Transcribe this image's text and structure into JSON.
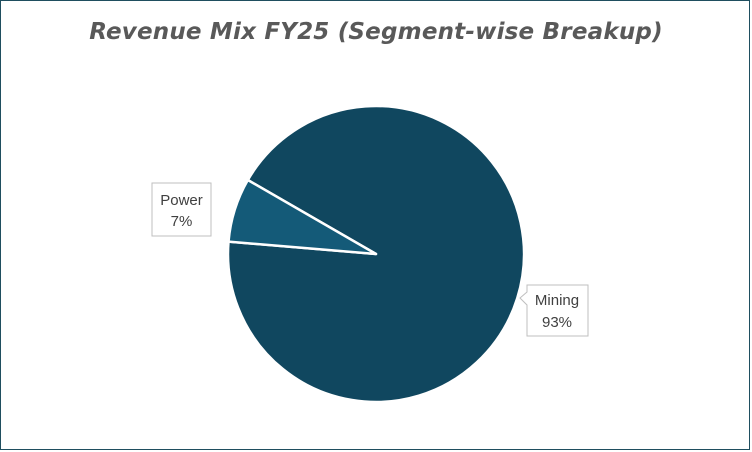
{
  "chart_data": {
    "type": "pie",
    "title": "Revenue Mix FY25 (Segment-wise Breakup)",
    "slices": [
      {
        "label": "Mining",
        "value": 93,
        "value_label": "93%",
        "color": "#10475f"
      },
      {
        "label": "Power",
        "value": 7,
        "value_label": "7%",
        "color": "#145a78"
      }
    ],
    "slice_border_color": "#ffffff",
    "legend": "none",
    "label_style": "callout boxes with category name and percentage"
  }
}
